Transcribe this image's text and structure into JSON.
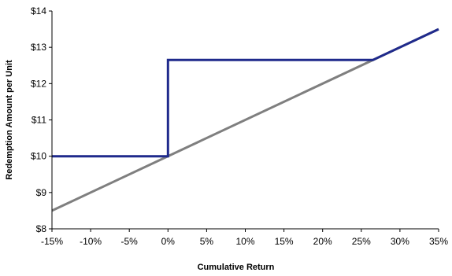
{
  "chart_data": {
    "type": "line",
    "xlabel": "Cumulative Return",
    "ylabel": "Redemption Amount per Unit",
    "xlim": [
      -15,
      35
    ],
    "ylim": [
      8,
      14
    ],
    "x_ticks": [
      {
        "value": -15,
        "label": "-15%"
      },
      {
        "value": -10,
        "label": "-10%"
      },
      {
        "value": -5,
        "label": "-5%"
      },
      {
        "value": 0,
        "label": "0%"
      },
      {
        "value": 5,
        "label": "5%"
      },
      {
        "value": 10,
        "label": "10%"
      },
      {
        "value": 15,
        "label": "15%"
      },
      {
        "value": 20,
        "label": "20%"
      },
      {
        "value": 25,
        "label": "25%"
      },
      {
        "value": 30,
        "label": "30%"
      },
      {
        "value": 35,
        "label": "35%"
      }
    ],
    "y_ticks": [
      {
        "value": 8,
        "label": "$8"
      },
      {
        "value": 9,
        "label": "$9"
      },
      {
        "value": 10,
        "label": "$10"
      },
      {
        "value": 11,
        "label": "$11"
      },
      {
        "value": 12,
        "label": "$12"
      },
      {
        "value": 13,
        "label": "$13"
      },
      {
        "value": 14,
        "label": "$14"
      }
    ],
    "grid": false,
    "legend": "none",
    "series": [
      {
        "color": "#7f7f7f",
        "points": [
          [
            -15,
            8.5
          ],
          [
            35,
            13.5
          ]
        ]
      },
      {
        "color": "#1f2a8c",
        "points": [
          [
            -15,
            10.0
          ],
          [
            0,
            10.0
          ],
          [
            0,
            12.65
          ],
          [
            26.5,
            12.65
          ],
          [
            35,
            13.5
          ]
        ]
      }
    ]
  }
}
